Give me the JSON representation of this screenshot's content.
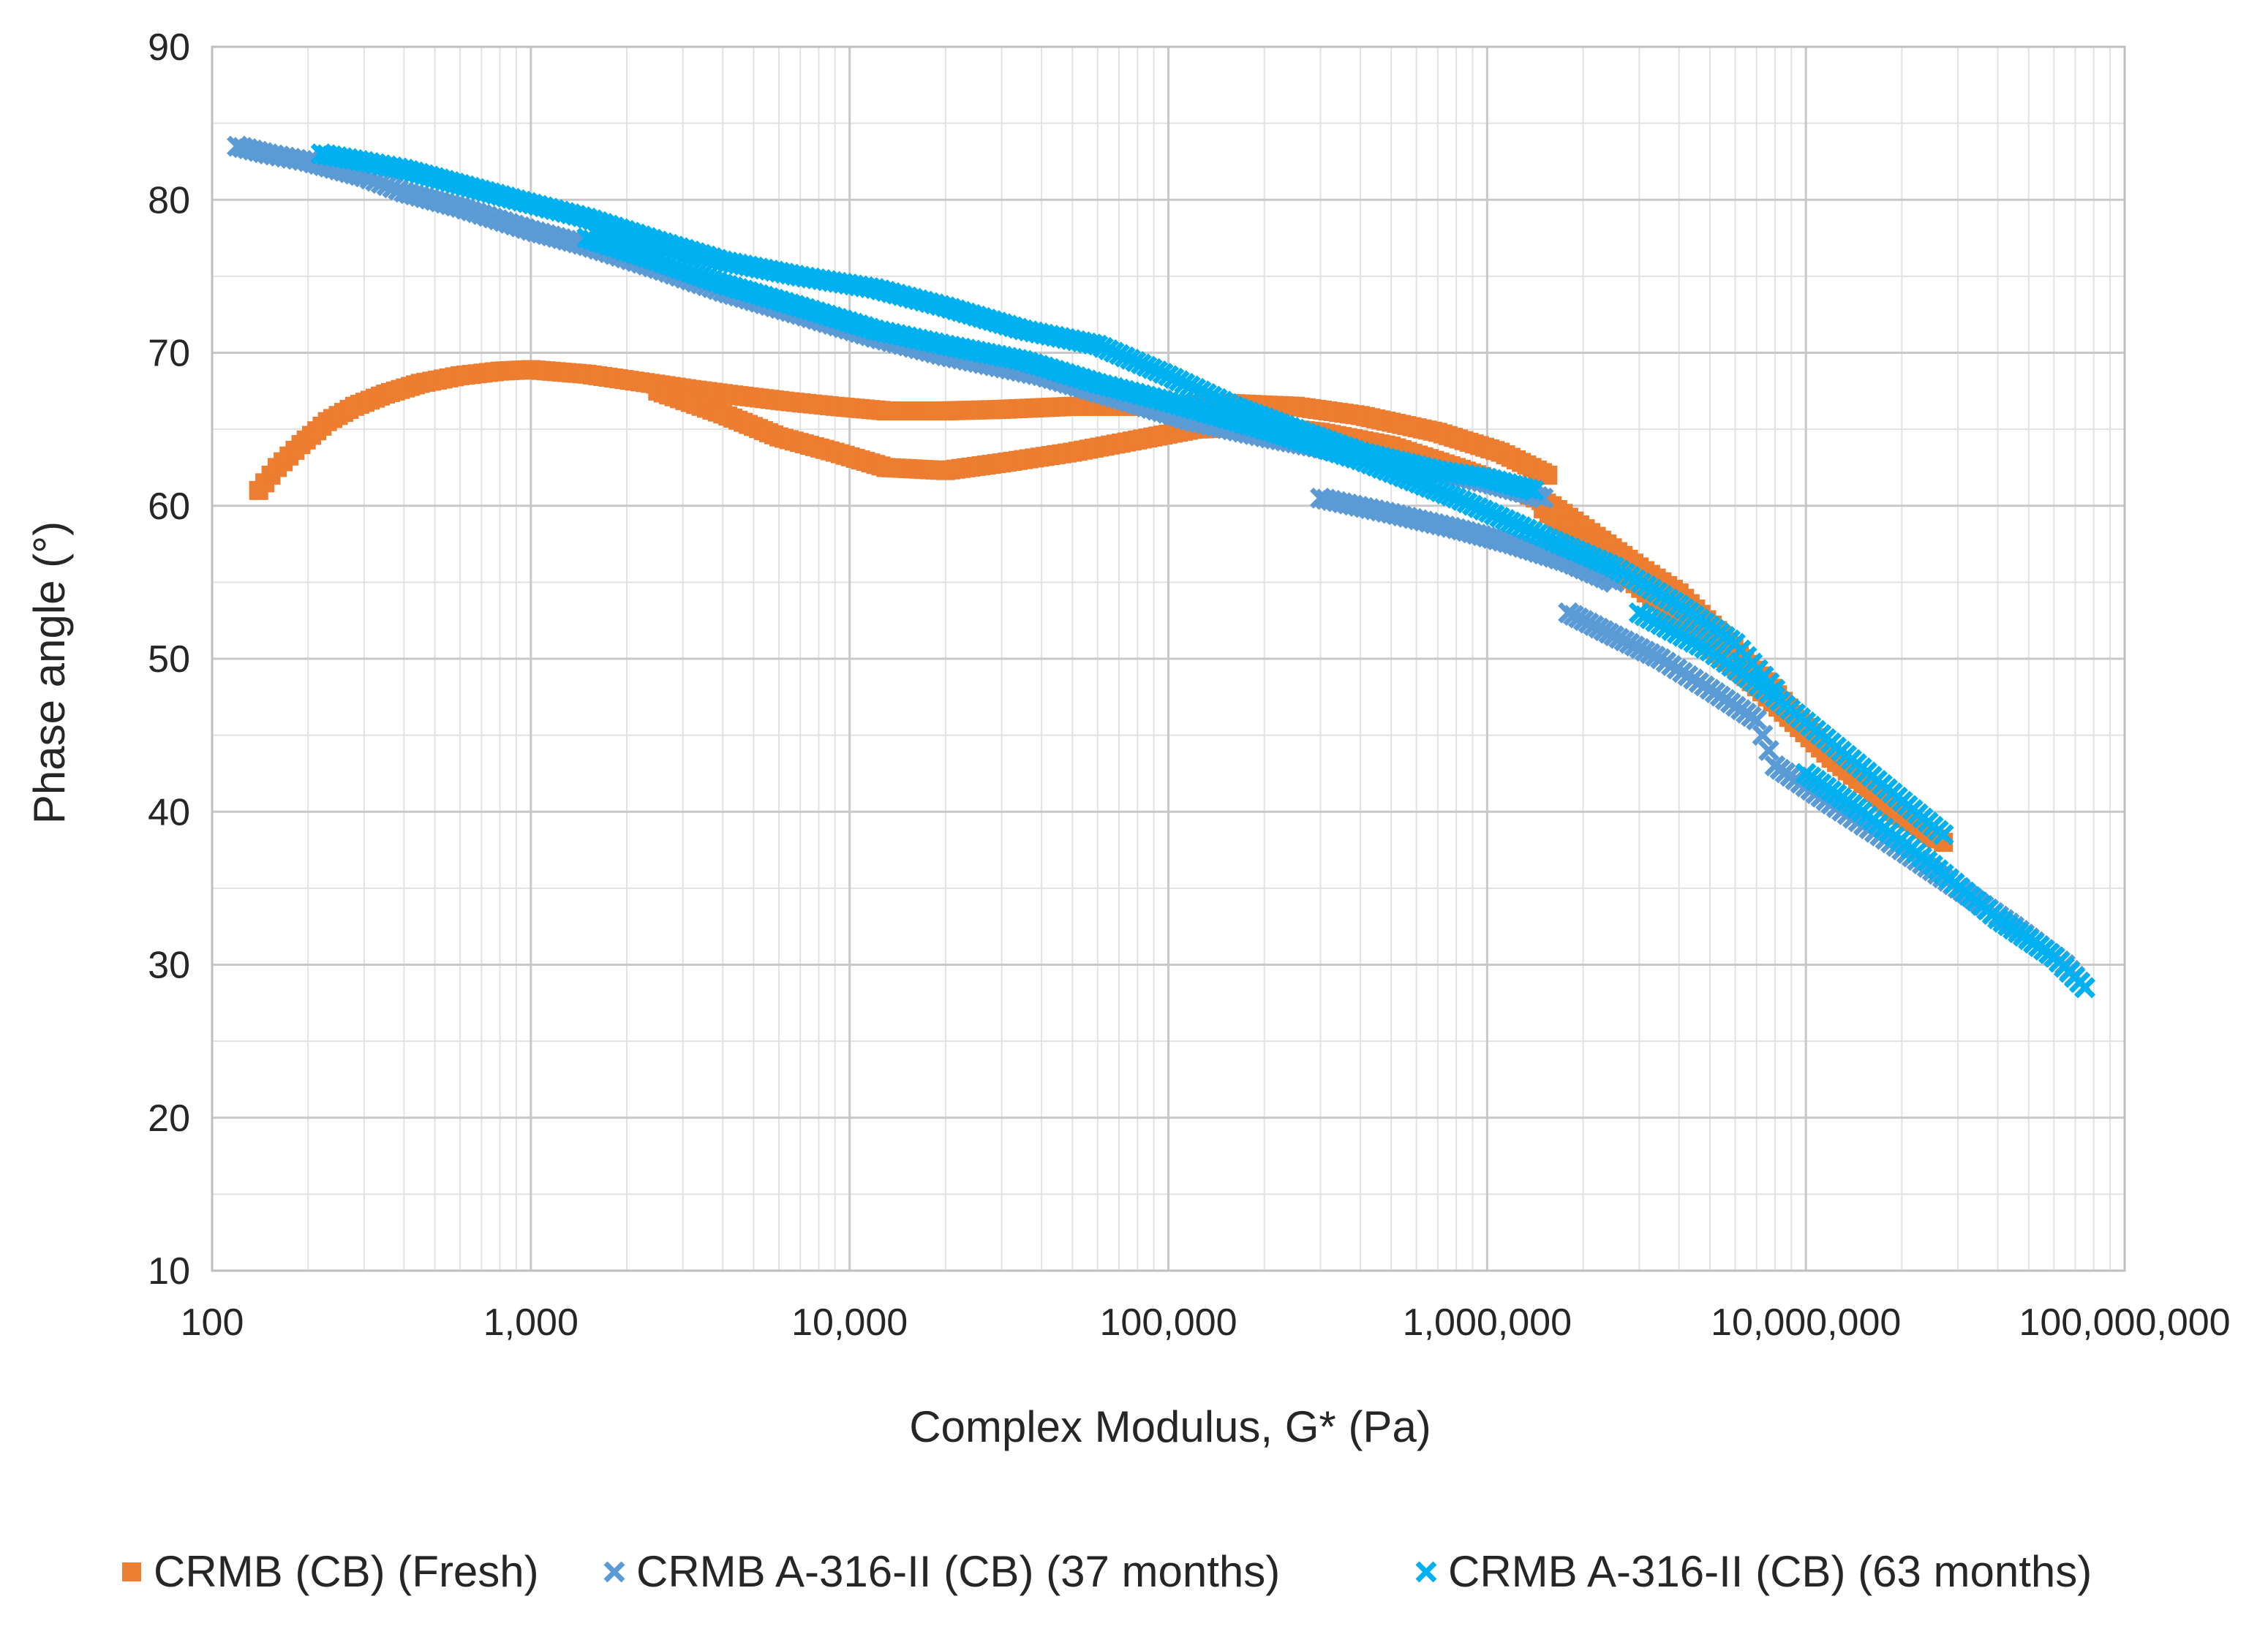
{
  "chart_data": {
    "type": "scatter",
    "title": "",
    "xlabel": "Complex Modulus, G* (Pa)",
    "ylabel": "Phase angle (°)",
    "xscale": "log",
    "xlim": [
      100,
      100000000
    ],
    "ylim": [
      10,
      90
    ],
    "xticks": [
      100,
      1000,
      10000,
      100000,
      1000000,
      10000000,
      100000000
    ],
    "xtick_labels": [
      "100",
      "1,000",
      "10,000",
      "100,000",
      "1,000,000",
      "10,000,000",
      "100,000,000"
    ],
    "yticks": [
      10,
      20,
      30,
      40,
      50,
      60,
      70,
      80,
      90
    ],
    "ytick_labels": [
      "10",
      "20",
      "30",
      "40",
      "50",
      "60",
      "70",
      "80",
      "90"
    ],
    "grid": true,
    "legend_position": "bottom",
    "series": [
      {
        "name": "CRMB (CB) (Fresh)",
        "marker": "square",
        "color": "#ED7D31",
        "points": [
          [
            140,
            61.0
          ],
          [
            160,
            62.5
          ],
          [
            190,
            64.0
          ],
          [
            230,
            65.5
          ],
          [
            280,
            66.5
          ],
          [
            350,
            67.3
          ],
          [
            450,
            68.0
          ],
          [
            600,
            68.5
          ],
          [
            800,
            68.8
          ],
          [
            1000,
            68.9
          ],
          [
            1500,
            68.6
          ],
          [
            2200,
            68.1
          ],
          [
            3200,
            67.6
          ],
          [
            4500,
            67.2
          ],
          [
            6500,
            66.8
          ],
          [
            9000,
            66.5
          ],
          [
            13000,
            66.2
          ],
          [
            20000,
            66.2
          ],
          [
            30000,
            66.3
          ],
          [
            50000,
            66.5
          ],
          [
            80000,
            66.5
          ],
          [
            150000,
            66.7
          ],
          [
            250000,
            66.5
          ],
          [
            400000,
            65.9
          ],
          [
            700000,
            64.8
          ],
          [
            1100000,
            63.5
          ],
          [
            1550000,
            62.0
          ],
          [
            2500,
            67.5
          ],
          [
            4000,
            66.0
          ],
          [
            6000,
            64.5
          ],
          [
            9000,
            63.5
          ],
          [
            13000,
            62.5
          ],
          [
            20000,
            62.3
          ],
          [
            30000,
            62.8
          ],
          [
            50000,
            63.5
          ],
          [
            80000,
            64.3
          ],
          [
            120000,
            65.0
          ],
          [
            200000,
            65.2
          ],
          [
            300000,
            64.8
          ],
          [
            500000,
            63.9
          ],
          [
            800000,
            62.5
          ],
          [
            1200000,
            61.2
          ],
          [
            1600000,
            60.0
          ],
          [
            2200000,
            58.0
          ],
          [
            3000000,
            56.0
          ],
          [
            4000000,
            54.3
          ],
          [
            5500000,
            51.5
          ],
          [
            7500000,
            48.5
          ],
          [
            10000000,
            45.5
          ],
          [
            14000000,
            42.5
          ],
          [
            19000000,
            40.0
          ],
          [
            27000000,
            38.0
          ],
          [
            1500000,
            59.8
          ],
          [
            2000000,
            57.5
          ],
          [
            2800000,
            55.2
          ],
          [
            4000000,
            52.5
          ],
          [
            6000000,
            49.5
          ],
          [
            8500000,
            46.5
          ],
          [
            12000000,
            43.5
          ],
          [
            17000000,
            41.0
          ],
          [
            25000000,
            38.3
          ]
        ]
      },
      {
        "name": "CRMB A-316-II (CB) (37 months)",
        "marker": "x",
        "color": "#5B9BD5",
        "points": [
          [
            120,
            83.5
          ],
          [
            150,
            83.0
          ],
          [
            200,
            82.5
          ],
          [
            300,
            81.5
          ],
          [
            400,
            80.5
          ],
          [
            600,
            79.5
          ],
          [
            1000,
            78.0
          ],
          [
            1500,
            77.0
          ],
          [
            2500,
            75.5
          ],
          [
            4000,
            74.0
          ],
          [
            7000,
            72.5
          ],
          [
            12000,
            71.0
          ],
          [
            20000,
            69.8
          ],
          [
            40000,
            68.5
          ],
          [
            70000,
            67.0
          ],
          [
            120000,
            65.5
          ],
          [
            200000,
            64.5
          ],
          [
            350000,
            63.5
          ],
          [
            600000,
            62.5
          ],
          [
            1000000,
            61.5
          ],
          [
            1500000,
            60.5
          ],
          [
            300000,
            60.5
          ],
          [
            500000,
            59.5
          ],
          [
            800000,
            58.5
          ],
          [
            1200000,
            57.5
          ],
          [
            1800000,
            56.3
          ],
          [
            2500000,
            55.0
          ],
          [
            1800000,
            53.0
          ],
          [
            2500000,
            51.5
          ],
          [
            3500000,
            50.0
          ],
          [
            5000000,
            48.0
          ],
          [
            7000000,
            46.0
          ],
          [
            8000000,
            43.0
          ],
          [
            12000000,
            40.5
          ],
          [
            20000000,
            37.5
          ],
          [
            30000000,
            35.0
          ],
          [
            45000000,
            32.5
          ],
          [
            65000000,
            30.0
          ],
          [
            75000000,
            28.5
          ]
        ]
      },
      {
        "name": "CRMB A-316-II (CB) (63 months)",
        "marker": "x",
        "color": "#00B0F0",
        "points": [
          [
            220,
            83.0
          ],
          [
            300,
            82.5
          ],
          [
            400,
            82.0
          ],
          [
            600,
            81.0
          ],
          [
            900,
            80.0
          ],
          [
            1500,
            78.8
          ],
          [
            2500,
            77.3
          ],
          [
            4000,
            76.0
          ],
          [
            7000,
            75.0
          ],
          [
            12000,
            74.2
          ],
          [
            20000,
            73.0
          ],
          [
            35000,
            71.5
          ],
          [
            60000,
            70.5
          ],
          [
            100000,
            68.5
          ],
          [
            160000,
            66.5
          ],
          [
            250000,
            65.0
          ],
          [
            400000,
            63.5
          ],
          [
            700000,
            62.3
          ],
          [
            1000000,
            61.8
          ],
          [
            1400000,
            61.0
          ],
          [
            1500,
            77.5
          ],
          [
            2500,
            76.0
          ],
          [
            4000,
            74.5
          ],
          [
            7000,
            73.0
          ],
          [
            12000,
            71.5
          ],
          [
            20000,
            70.5
          ],
          [
            35000,
            69.5
          ],
          [
            60000,
            68.0
          ],
          [
            100000,
            66.8
          ],
          [
            200000,
            65.0
          ],
          [
            400000,
            63.0
          ],
          [
            800000,
            60.5
          ],
          [
            1500000,
            58.0
          ],
          [
            2500000,
            56.0
          ],
          [
            4000000,
            53.5
          ],
          [
            6000000,
            51.0
          ],
          [
            8000000,
            48.0
          ],
          [
            3000000,
            53.0
          ],
          [
            5000000,
            50.5
          ],
          [
            8000000,
            47.5
          ],
          [
            12000000,
            44.5
          ],
          [
            18000000,
            41.5
          ],
          [
            27000000,
            38.5
          ],
          [
            10000000,
            42.5
          ],
          [
            15000000,
            40.0
          ],
          [
            25000000,
            36.5
          ],
          [
            40000000,
            33.0
          ],
          [
            60000000,
            30.5
          ],
          [
            75000000,
            28.5
          ]
        ]
      }
    ]
  }
}
